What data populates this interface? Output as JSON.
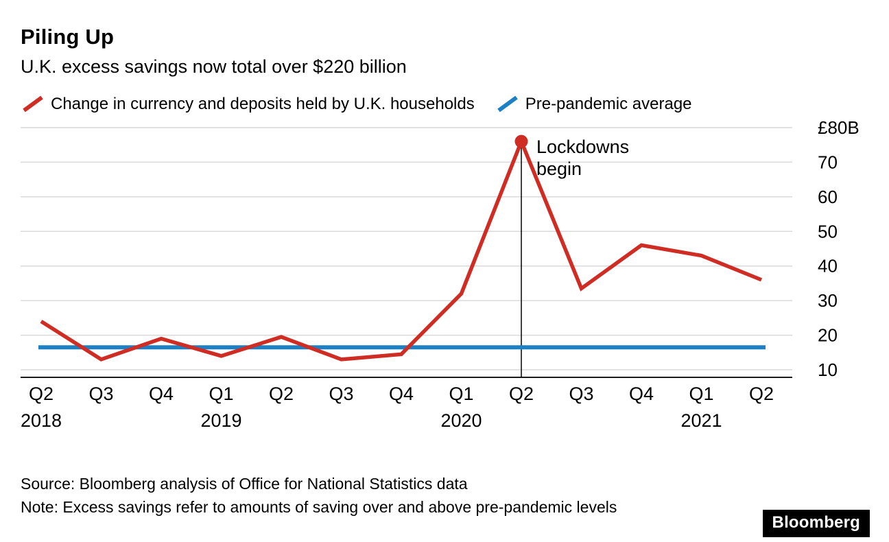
{
  "header": {
    "title": "Piling Up",
    "subtitle": "U.K. excess savings now total over $220 billion"
  },
  "legend": [
    {
      "label": "Change in currency and deposits held by U.K. households",
      "color": "#cf2d24"
    },
    {
      "label": "Pre-pandemic average",
      "color": "#1b80c4"
    }
  ],
  "chart_data": {
    "type": "line",
    "title": "Piling Up",
    "subtitle": "U.K. excess savings now total over $220 billion",
    "x": [
      "Q2 2018",
      "Q3 2018",
      "Q4 2018",
      "Q1 2019",
      "Q2 2019",
      "Q3 2019",
      "Q4 2019",
      "Q1 2020",
      "Q2 2020",
      "Q3 2020",
      "Q4 2020",
      "Q1 2021",
      "Q2 2021"
    ],
    "x_quarter_labels": [
      "Q2",
      "Q3",
      "Q4",
      "Q1",
      "Q2",
      "Q3",
      "Q4",
      "Q1",
      "Q2",
      "Q3",
      "Q4",
      "Q1",
      "Q2"
    ],
    "year_ticks": [
      {
        "index": 0,
        "label": "2018"
      },
      {
        "index": 3,
        "label": "2019"
      },
      {
        "index": 7,
        "label": "2020"
      },
      {
        "index": 11,
        "label": "2021"
      }
    ],
    "series": [
      {
        "name": "Change in currency and deposits held by U.K. households",
        "color": "#cf2d24",
        "values": [
          24,
          13,
          19,
          14,
          19.5,
          13,
          14.5,
          32,
          76,
          33.5,
          46,
          43,
          36
        ]
      },
      {
        "name": "Pre-pandemic average",
        "color": "#1b80c4",
        "constant": true,
        "value": 16.5
      }
    ],
    "ylim": [
      10,
      80
    ],
    "unit": "£B",
    "yticks": [
      {
        "value": 80,
        "label": "£80B"
      },
      {
        "value": 70,
        "label": "70"
      },
      {
        "value": 60,
        "label": "60"
      },
      {
        "value": 50,
        "label": "50"
      },
      {
        "value": 40,
        "label": "40"
      },
      {
        "value": 30,
        "label": "30"
      },
      {
        "value": 20,
        "label": "20"
      },
      {
        "value": 10,
        "label": "10"
      }
    ],
    "annotation": {
      "lines": [
        "Lockdowns",
        "begin"
      ],
      "x_index": 8
    },
    "grid": "horizontal",
    "legend_position": "top",
    "colors": {
      "grid": "#d9d9d9",
      "axis": "#1a1a1a",
      "annotation": "#000000"
    }
  },
  "footer": {
    "source": "Source: Bloomberg analysis of Office for National Statistics data",
    "note": "Note: Excess savings refer to amounts of saving over and above pre-pandemic levels",
    "logo": "Bloomberg"
  }
}
